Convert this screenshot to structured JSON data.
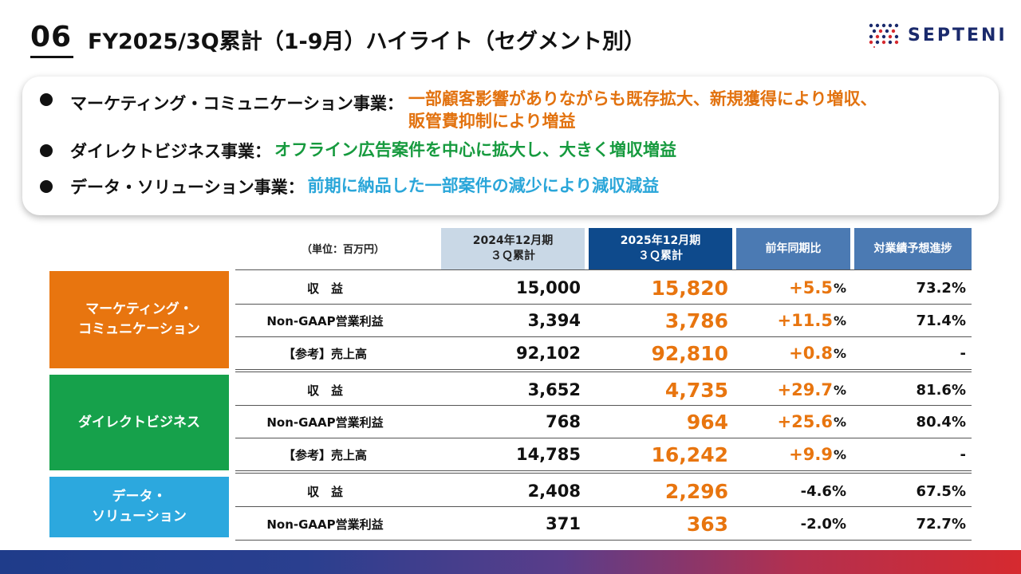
{
  "header": {
    "page_number": "06",
    "title": "FY2025/3Q累計（1-9月）ハイライト（セグメント別）",
    "logo_text": "SEPTENI"
  },
  "highlights": [
    {
      "label": "マーケティング・コミュニケーション事業：",
      "desc_line1": "一部顧客影響がありながらも既存拡大、新規獲得により増収、",
      "desc_line2": "販管費抑制により増益",
      "color": "#e2720f"
    },
    {
      "label": "ダイレクトビジネス事業：",
      "desc_line1": "オフライン広告案件を中心に拡大し、大きく増収増益",
      "color": "#169a3e"
    },
    {
      "label": "データ・ソリューション事業：",
      "desc_line1": "前期に納品した一部案件の減少により減収減益",
      "color": "#2aa6d9"
    }
  ],
  "table": {
    "unit": "（単位：百万円）",
    "headers": [
      {
        "line1": "2024年12月期",
        "line2": "３Ｑ累計"
      },
      {
        "line1": "2025年12月期",
        "line2": "３Ｑ累計"
      },
      {
        "line1": "前年同期比",
        "line2": ""
      },
      {
        "line1": "対業績予想進捗",
        "line2": ""
      }
    ],
    "segments": [
      {
        "name_line1": "マーケティング・",
        "name_line2": "コミュニケーション",
        "color": "#e8750f"
      },
      {
        "name_line1": "ダイレクトビジネス",
        "name_line2": "",
        "color": "#16a14b"
      },
      {
        "name_line1": "データ・",
        "name_line2": "ソリューション",
        "color": "#2ca8de"
      }
    ],
    "rows": [
      {
        "label": "収　益",
        "v2024": "15,000",
        "v2025": "15,820",
        "yoy": "+5.5",
        "yoy_unit": "%",
        "progress": "73.2%"
      },
      {
        "label": "Non-GAAP営業利益",
        "v2024": "3,394",
        "v2025": "3,786",
        "yoy": "+11.5",
        "yoy_unit": "%",
        "progress": "71.4%"
      },
      {
        "label": "【参考】売上高",
        "v2024": "92,102",
        "v2025": "92,810",
        "yoy": "+0.8",
        "yoy_unit": "%",
        "progress": "-"
      },
      {
        "label": "収　益",
        "v2024": "3,652",
        "v2025": "4,735",
        "yoy": "+29.7",
        "yoy_unit": "%",
        "progress": "81.6%"
      },
      {
        "label": "Non-GAAP営業利益",
        "v2024": "768",
        "v2025": "964",
        "yoy": "+25.6",
        "yoy_unit": "%",
        "progress": "80.4%"
      },
      {
        "label": "【参考】売上高",
        "v2024": "14,785",
        "v2025": "16,242",
        "yoy": "+9.9",
        "yoy_unit": "%",
        "progress": "-"
      },
      {
        "label": "収　益",
        "v2024": "2,408",
        "v2025": "2,296",
        "yoy": "-4.6%",
        "yoy_unit": "",
        "progress": "67.5%"
      },
      {
        "label": "Non-GAAP営業利益",
        "v2024": "371",
        "v2025": "363",
        "yoy": "-2.0%",
        "yoy_unit": "",
        "progress": "72.7%"
      }
    ]
  }
}
